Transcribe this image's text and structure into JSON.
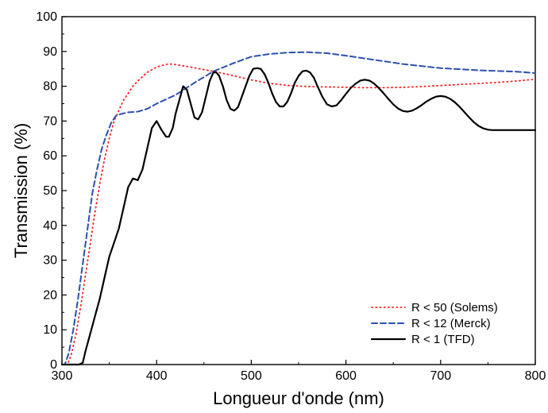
{
  "chart_data": {
    "type": "line",
    "title": "",
    "xlabel": "Longueur d'onde (nm)",
    "ylabel": "Transmission (%)",
    "xlim": [
      300,
      800
    ],
    "ylim": [
      0,
      100
    ],
    "x_ticks": [
      300,
      400,
      500,
      600,
      700,
      800
    ],
    "y_ticks": [
      0,
      10,
      20,
      30,
      40,
      50,
      60,
      70,
      80,
      90,
      100
    ],
    "x_tick_labels": [
      "300",
      "400",
      "500",
      "600",
      "700",
      "800"
    ],
    "y_tick_labels": [
      "0",
      "10",
      "20",
      "30",
      "40",
      "50",
      "60",
      "70",
      "80",
      "90",
      "100"
    ],
    "grid": false,
    "legend_position": "bottom-right",
    "series": [
      {
        "name": "R < 50 (Solems)",
        "color": "#ff2020",
        "style": "dotted",
        "x": [
          300,
          306,
          310,
          315,
          320,
          325,
          330,
          335,
          340,
          345,
          350,
          355,
          360,
          365,
          370,
          375,
          380,
          390,
          400,
          410,
          415,
          420,
          430,
          440,
          450,
          460,
          470,
          480,
          500,
          520,
          540,
          560,
          580,
          600,
          620,
          640,
          660,
          680,
          700,
          720,
          740,
          760,
          780,
          800
        ],
        "y": [
          0,
          0,
          3,
          9,
          17,
          26,
          35,
          44,
          52,
          59,
          65,
          70,
          73,
          76,
          78,
          80,
          81.5,
          84,
          85.5,
          86.3,
          86.4,
          86.2,
          85.8,
          85.3,
          84.8,
          84.3,
          83.7,
          83.1,
          81.8,
          80.8,
          80.2,
          79.9,
          79.8,
          79.7,
          79.6,
          79.6,
          79.7,
          79.9,
          80.2,
          80.5,
          80.8,
          81.1,
          81.5,
          82
        ]
      },
      {
        "name": "R < 12 (Merck)",
        "color": "#2c4fb0",
        "style": "dashed",
        "x": [
          300,
          303,
          307,
          312,
          317,
          322,
          327,
          332,
          337,
          342,
          347,
          352,
          357,
          362,
          370,
          380,
          390,
          400,
          420,
          440,
          460,
          480,
          500,
          520,
          540,
          560,
          580,
          600,
          620,
          640,
          660,
          680,
          700,
          720,
          740,
          760,
          780,
          800
        ],
        "y": [
          0,
          0,
          3,
          10,
          19,
          29,
          39,
          49,
          56,
          62,
          66,
          69.5,
          71.5,
          72,
          72.5,
          72.7,
          73.5,
          75,
          77.5,
          81,
          84.3,
          86.5,
          88.5,
          89.3,
          89.7,
          89.8,
          89.5,
          88.8,
          88,
          87.2,
          86.4,
          85.8,
          85.2,
          84.9,
          84.6,
          84.4,
          84.2,
          83.8
        ]
      },
      {
        "name": "R < 1 (TFD)",
        "color": "#000000",
        "style": "solid",
        "x": [
          300,
          305,
          310,
          318,
          322,
          325,
          330,
          335,
          340,
          345,
          350,
          355,
          360,
          365,
          370,
          375,
          380,
          385,
          390,
          395,
          400,
          405,
          410,
          413,
          417,
          420,
          425,
          428,
          432,
          436,
          440,
          444,
          448,
          452,
          456,
          460,
          463,
          466,
          470,
          474,
          478,
          482,
          486,
          490,
          494,
          498,
          502,
          506,
          510,
          514,
          518,
          522,
          526,
          530,
          534,
          538,
          542,
          546,
          550,
          554,
          558,
          562,
          566,
          570,
          575,
          580,
          585,
          590,
          595,
          600,
          605,
          610,
          615,
          620,
          625,
          630,
          635,
          640,
          645,
          650,
          655,
          660,
          665,
          670,
          675,
          680,
          685,
          690,
          695,
          700,
          705,
          710,
          715,
          720,
          725,
          730,
          735,
          740,
          745,
          750,
          755,
          760,
          765,
          770,
          775,
          780,
          785,
          790,
          795,
          800
        ],
        "y": [
          0,
          0,
          0,
          0,
          0.5,
          4,
          9,
          14,
          19,
          25,
          31,
          35,
          39,
          45,
          51,
          53.5,
          53,
          56,
          62,
          68,
          70,
          67.5,
          65.5,
          65.5,
          68,
          72,
          77,
          80,
          79,
          75,
          71,
          70.5,
          72.5,
          77,
          81.5,
          84,
          84,
          83,
          80,
          76,
          73.5,
          73,
          74,
          77,
          80,
          83,
          85,
          85.2,
          85,
          83.5,
          81,
          78,
          75.5,
          74.2,
          74.2,
          75.5,
          78,
          81,
          83,
          84.3,
          84.5,
          84,
          82.5,
          80,
          77,
          74.8,
          74.2,
          74.5,
          76,
          77.8,
          79.5,
          80.7,
          81.6,
          81.9,
          81.6,
          80.7,
          79.4,
          77.9,
          76.3,
          74.8,
          73.6,
          72.9,
          72.7,
          73,
          73.7,
          74.6,
          75.6,
          76.4,
          77,
          77.2,
          77,
          76.4,
          75.4,
          74.1,
          72.6,
          71.1,
          69.7,
          68.6,
          67.9,
          67.5,
          67.4,
          67.4,
          67.4,
          67.4,
          67.4,
          67.4,
          67.4,
          67.4,
          67.4,
          67.4
        ]
      }
    ]
  }
}
